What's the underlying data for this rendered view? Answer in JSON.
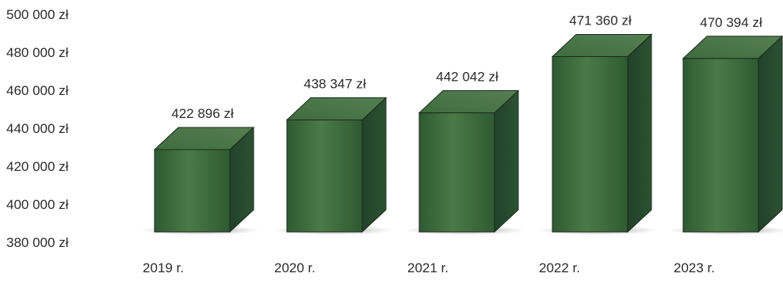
{
  "chart_data": {
    "type": "bar",
    "categories": [
      "2019 r.",
      "2020 r.",
      "2021 r.",
      "2022 r.",
      "2023 r."
    ],
    "values": [
      422896,
      438347,
      442042,
      471360,
      470394
    ],
    "data_labels": [
      "422 896 zł",
      "438 347 zł",
      "442 042 zł",
      "471 360 zł",
      "470 394 zł"
    ],
    "yticks": [
      380000,
      400000,
      420000,
      440000,
      460000,
      480000,
      500000
    ],
    "ytick_labels": [
      "380 000 zł",
      "400 000 zł",
      "420 000 zł",
      "440 000 zł",
      "460 000 zł",
      "480 000 zł",
      "500 000 zł"
    ],
    "ylim": [
      380000,
      500000
    ],
    "title": "",
    "xlabel": "",
    "ylabel": "",
    "grid": false,
    "legend": "none",
    "style": "3d-column",
    "colors": {
      "front": "#3d6b3d",
      "side": "#24452a",
      "top": "#4e7d4c",
      "edge": "#1c2a1c",
      "shadow": "#8a8a8a"
    }
  }
}
